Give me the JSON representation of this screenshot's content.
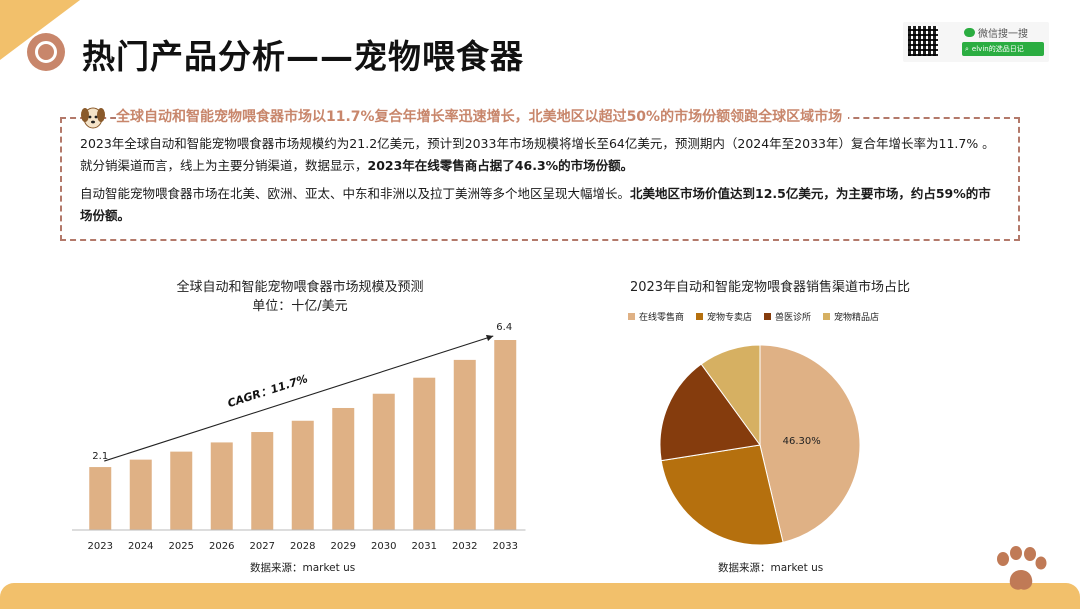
{
  "header": {
    "title": "热门产品分析——宠物喂食器"
  },
  "watermark": {
    "wechat_label": "微信搜一搜",
    "search_text": "elvin的选品日记"
  },
  "summary": {
    "headline": "全球自动和智能宠物喂食器市场以11.7%复合年增长率迅速增长，北美地区以超过50%的市场份额领跑全球区域市场",
    "p1_normal": "2023年全球自动和智能宠物喂食器市场规模约为21.2亿美元，预计到2033年市场规模将增长至64亿美元，预测期内（2024年至2033年）复合年增长率为11.7% 。就分销渠道而言，线上为主要分销渠道，数据显示，",
    "p1_bold": "2023年在线零售商占据了46.3%的市场份额。",
    "p2_normal": "自动智能宠物喂食器市场在北美、欧洲、亚太、中东和非洲以及拉丁美洲等多个地区呈现大幅增长。",
    "p2_bold": "北美地区市场价值达到12.5亿美元，为主要市场，约占59%的市场份额。"
  },
  "colors": {
    "accent": "#c8866b",
    "band": "#f2c06b",
    "bar": "#dfb185"
  },
  "chart_data": [
    {
      "type": "bar",
      "title": "全球自动和智能宠物喂食器市场规模及预测",
      "subtitle": "单位：十亿/美元",
      "categories": [
        "2023",
        "2024",
        "2025",
        "2026",
        "2027",
        "2028",
        "2029",
        "2030",
        "2031",
        "2032",
        "2033"
      ],
      "values": [
        2.12,
        2.37,
        2.64,
        2.95,
        3.3,
        3.68,
        4.11,
        4.59,
        5.13,
        5.73,
        6.4
      ],
      "data_labels": {
        "first": "2.1",
        "last": "6.4"
      },
      "annotation": "CAGR：11.7%",
      "ylim": [
        0,
        6.4
      ],
      "grid": false,
      "source": "数据来源：market us"
    },
    {
      "type": "pie",
      "title": "2023年自动和智能宠物喂食器销售渠道市场占比",
      "labels": [
        "在线零售商",
        "宠物专卖店",
        "兽医诊所",
        "宠物精品店"
      ],
      "values": [
        46.3,
        26.2,
        17.5,
        10.0
      ],
      "colors": [
        "#dfb185",
        "#b5700e",
        "#853c0d",
        "#d6b062"
      ],
      "data_labels": [
        "46.30%",
        "",
        "",
        ""
      ],
      "legend": "top",
      "source": "数据来源：market us"
    }
  ]
}
